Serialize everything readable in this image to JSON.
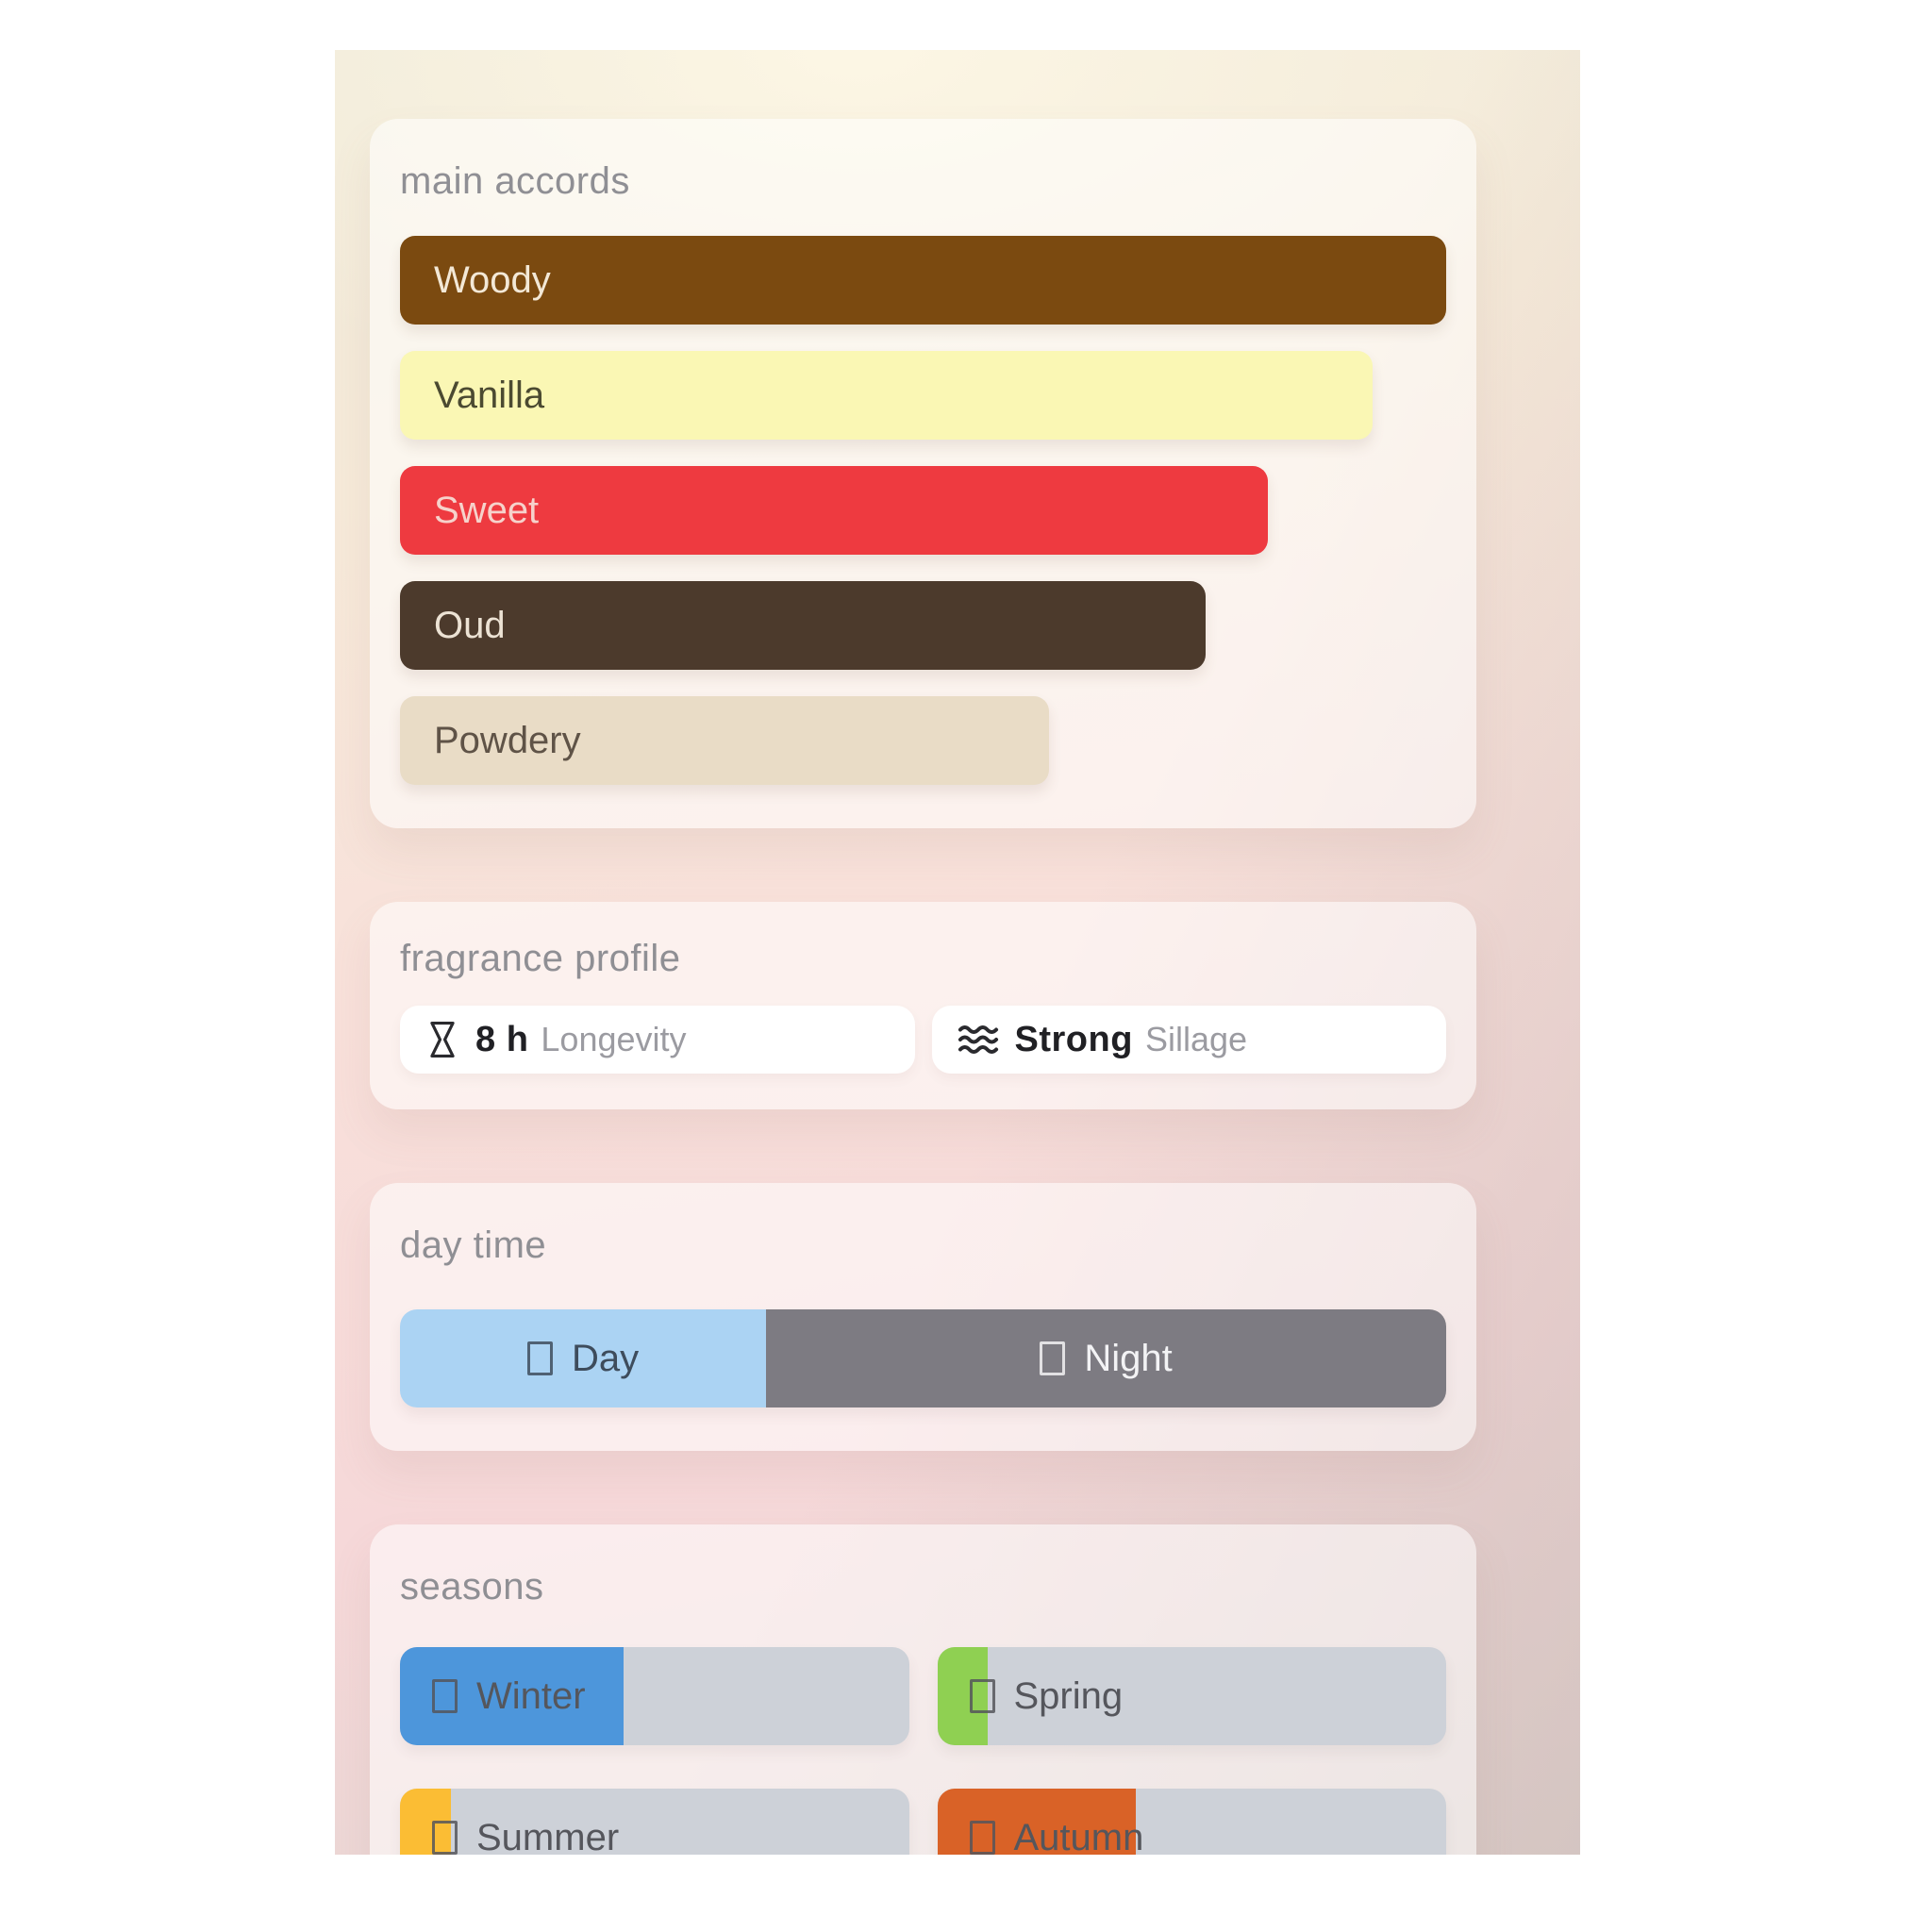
{
  "accords": {
    "title": "main accords",
    "items": [
      {
        "label": "Woody",
        "width_pct": 100,
        "bg": "#7b4a10",
        "fg": "#f3e8d6"
      },
      {
        "label": "Vanilla",
        "width_pct": 93,
        "bg": "#faf7b4",
        "fg": "#4b4a31"
      },
      {
        "label": "Sweet",
        "width_pct": 83,
        "bg": "#ee3a40",
        "fg": "#f6d2cb"
      },
      {
        "label": "Oud",
        "width_pct": 77,
        "bg": "#4c3a2c",
        "fg": "#ece2d4"
      },
      {
        "label": "Powdery",
        "width_pct": 62,
        "bg": "#e9dcc6",
        "fg": "#5f5347"
      }
    ]
  },
  "profile": {
    "title": "fragrance profile",
    "longevity": {
      "icon": "hourglass-icon",
      "value": "8 h",
      "label": "Longevity"
    },
    "sillage": {
      "icon": "waves-icon",
      "value": "Strong",
      "label": "Sillage"
    }
  },
  "daytime": {
    "title": "day time",
    "segments": [
      {
        "label": "Day",
        "icon": "missing-glyph-box (sun)",
        "width_pct": 35,
        "bg": "#abd3f3",
        "fg": "#3e4c5c"
      },
      {
        "label": "Night",
        "icon": "missing-glyph-box (moon)",
        "width_pct": 65,
        "bg": "#7d7b82",
        "fg": "#f3f3f5"
      }
    ]
  },
  "seasons": {
    "title": "seasons",
    "track_color": "#cdd1d8",
    "items": [
      {
        "label": "Winter",
        "icon": "missing-glyph-box (snowflake)",
        "fill_pct": 44,
        "fill_color": "#4d96db"
      },
      {
        "label": "Spring",
        "icon": "missing-glyph-box (flower)",
        "fill_pct": 10,
        "fill_color": "#8fd052"
      },
      {
        "label": "Summer",
        "icon": "missing-glyph-box (sun)",
        "fill_pct": 10,
        "fill_color": "#fbbd34"
      },
      {
        "label": "Autumn",
        "icon": "missing-glyph-box (leaf)",
        "fill_pct": 39,
        "fill_color": "#d96227"
      }
    ]
  }
}
